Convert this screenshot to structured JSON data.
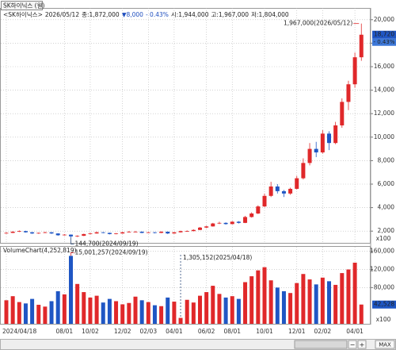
{
  "chart_data": {
    "type": "candlestick",
    "title": "SK하이닉스 (월)",
    "header": [
      {
        "text": "<SK하이닉스>",
        "color": "#222222"
      },
      {
        "text": "2026/05/12",
        "color": "#222222"
      },
      {
        "text": "종:1,872,000",
        "color": "#222222"
      },
      {
        "text": "▼8,000",
        "color": "#1f4fbf"
      },
      {
        "text": "- 0.43%",
        "color": "#1f4fbf"
      },
      {
        "text": "시:1,944,000",
        "color": "#222222"
      },
      {
        "text": "고:1,967,000",
        "color": "#222222"
      },
      {
        "text": "저:1,804,000",
        "color": "#222222"
      }
    ],
    "categories": [
      "2024/04/18",
      null,
      null,
      null,
      null,
      null,
      null,
      null,
      null,
      "08/01",
      null,
      null,
      null,
      "10/02",
      null,
      null,
      null,
      null,
      "12/02",
      null,
      null,
      null,
      "02/03",
      null,
      null,
      null,
      "04/01",
      null,
      null,
      null,
      null,
      "06/02",
      null,
      null,
      null,
      "08/01",
      null,
      null,
      null,
      null,
      "10/01",
      null,
      null,
      null,
      null,
      "12/01",
      null,
      null,
      null,
      "02/02",
      null,
      null,
      null,
      null,
      "04/01",
      null
    ],
    "opens": [
      1800,
      1850,
      1950,
      2000,
      1900,
      1800,
      1850,
      1900,
      1800,
      1650,
      1700,
      1550,
      1600,
      1750,
      1800,
      1900,
      1850,
      1750,
      1800,
      1900,
      1950,
      1950,
      1850,
      1900,
      1850,
      1950,
      1800,
      1900,
      2000,
      2000,
      2100,
      2300,
      2400,
      2650,
      2700,
      2600,
      2800,
      2700,
      3200,
      3500,
      4100,
      5000,
      5800,
      5400,
      5200,
      5600,
      6500,
      7800,
      9000,
      8700,
      10300,
      9500,
      11000,
      13000,
      14500,
      16800
    ],
    "highs": [
      1900,
      1990,
      2060,
      2030,
      1930,
      1880,
      1950,
      1920,
      1820,
      1740,
      1720,
      1640,
      1780,
      1850,
      1960,
      1920,
      1870,
      1840,
      1940,
      2010,
      2020,
      1970,
      1930,
      1920,
      1980,
      1960,
      1920,
      2040,
      2060,
      2150,
      2350,
      2450,
      2700,
      2800,
      2750,
      2850,
      2850,
      3300,
      3600,
      4200,
      5200,
      6200,
      6000,
      5500,
      5700,
      6700,
      8200,
      9500,
      9600,
      10600,
      10500,
      11300,
      13300,
      14800,
      17200,
      19670
    ],
    "lows": [
      1780,
      1830,
      1920,
      1870,
      1760,
      1770,
      1830,
      1760,
      1600,
      1620,
      1447,
      1500,
      1580,
      1720,
      1780,
      1810,
      1720,
      1730,
      1780,
      1880,
      1910,
      1820,
      1830,
      1800,
      1830,
      1750,
      1780,
      1880,
      1950,
      1980,
      2080,
      2250,
      2380,
      2600,
      2550,
      2580,
      2650,
      2680,
      3150,
      3450,
      4050,
      4900,
      5200,
      4900,
      5100,
      5550,
      6400,
      7600,
      8300,
      8600,
      8900,
      9400,
      10800,
      12300,
      14200,
      16500
    ],
    "closes": [
      1850,
      1950,
      2000,
      1900,
      1800,
      1850,
      1900,
      1800,
      1650,
      1700,
      1550,
      1600,
      1750,
      1800,
      1900,
      1850,
      1750,
      1800,
      1900,
      1950,
      1950,
      1850,
      1900,
      1850,
      1950,
      1800,
      1900,
      2000,
      2000,
      2100,
      2300,
      2400,
      2650,
      2700,
      2600,
      2800,
      2700,
      3200,
      3500,
      4100,
      5000,
      5800,
      5400,
      5200,
      5600,
      6500,
      7800,
      9000,
      8700,
      10300,
      9500,
      11000,
      13000,
      14500,
      16800,
      18720
    ],
    "colors": {
      "up": "#e0282a",
      "down": "#1f56c4"
    },
    "ylim": [
      1000,
      21000
    ],
    "yticks": [
      {
        "value": 2000,
        "label": "2,000"
      },
      {
        "value": 4000,
        "label": "4,000"
      },
      {
        "value": 6000,
        "label": "6,000"
      },
      {
        "value": 8000,
        "label": "8,000"
      },
      {
        "value": 10000,
        "label": "10,000"
      },
      {
        "value": 12000,
        "label": "12,000"
      },
      {
        "value": 14000,
        "label": "14,000"
      },
      {
        "value": 16000,
        "label": "16,000"
      },
      {
        "value": 18000,
        "label": "18,000"
      },
      {
        "value": 20000,
        "label": "20,000"
      }
    ],
    "y_unit": "x100",
    "last_price_label": "18,720",
    "last_change_label": "- 0.43%",
    "grid": true,
    "annotations": {
      "high": "1,967,000(2026/05/12)",
      "low": "144,700(2024/09/19)",
      "volume_max": "15,001,257(2024/09/19)",
      "volume_min": "1,305,152(2025/04/18)"
    },
    "volume": {
      "title": "VolumeChart(4,252,819)",
      "values": [
        52000,
        61000,
        48000,
        45000,
        55000,
        42000,
        38000,
        50000,
        72000,
        65000,
        150013,
        88000,
        70000,
        58000,
        62000,
        47000,
        55000,
        50000,
        43000,
        46000,
        60000,
        52000,
        48000,
        41000,
        39000,
        58000,
        49000,
        13052,
        53000,
        47000,
        62000,
        70000,
        84000,
        66000,
        58000,
        61000,
        55000,
        92000,
        105000,
        118000,
        125000,
        96000,
        80000,
        72000,
        68000,
        90000,
        110000,
        98000,
        87000,
        102000,
        94000,
        86000,
        112000,
        120000,
        135000,
        42528
      ],
      "ylim": [
        0,
        170000
      ],
      "yticks": [
        {
          "value": 80000,
          "label": "80,000"
        },
        {
          "value": 120000,
          "label": "120,000"
        },
        {
          "value": 160000,
          "label": "160,000"
        }
      ],
      "unit": "x100",
      "last_label": "42,528"
    }
  },
  "controls": {
    "zoom": "MAX"
  }
}
